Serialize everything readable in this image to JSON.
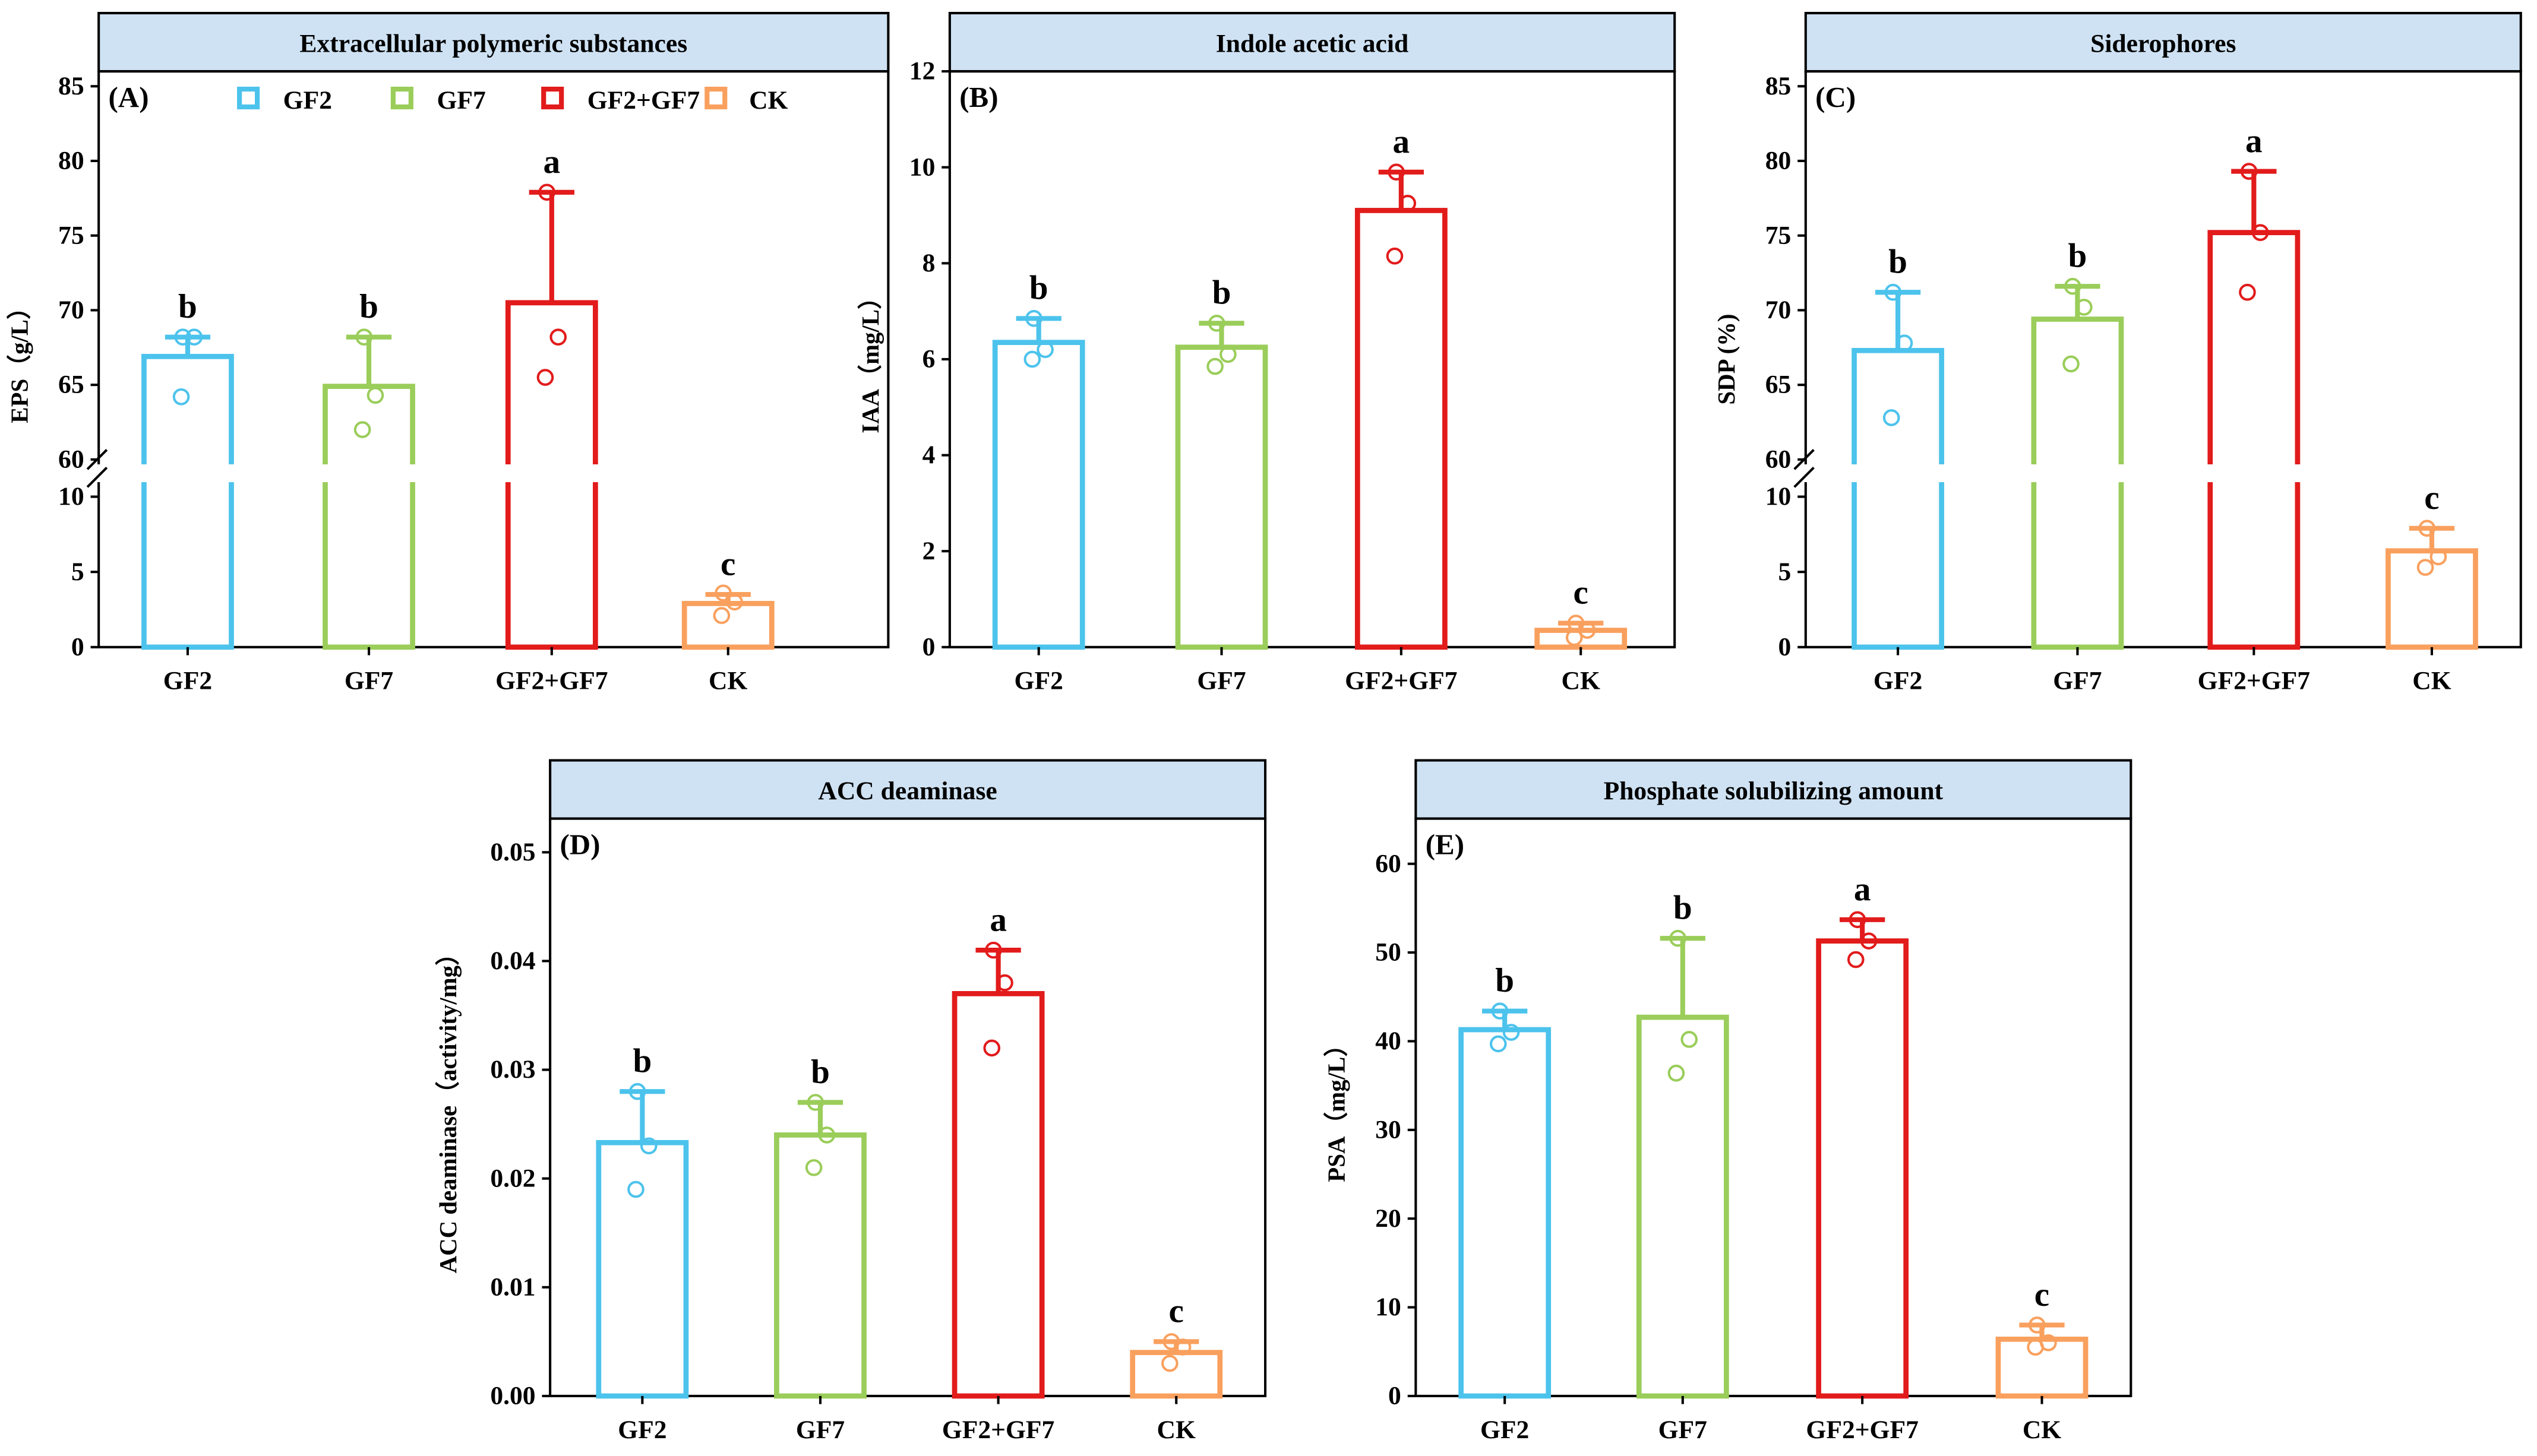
{
  "colors": {
    "GF2": "#4cc3ec",
    "GF7": "#9acd5a",
    "GF2+GF7": "#e21b1b",
    "CK": "#f9a05e",
    "title_bg": "#cfe2f3"
  },
  "legend": [
    "GF2",
    "GF7",
    "GF2+GF7",
    "CK"
  ],
  "chart_data": [
    {
      "type": "bar",
      "panel": "(A)",
      "title": "Extracellular polymeric substances",
      "ylabel": "EPS（g/L）",
      "categories": [
        "GF2",
        "GF7",
        "GF2+GF7",
        "CK"
      ],
      "axis_segments": [
        [
          0,
          10
        ],
        [
          60,
          86
        ]
      ],
      "ticks": [
        0,
        5,
        10,
        60,
        65,
        70,
        75,
        80,
        85
      ],
      "tick_labels": [
        "0",
        "5",
        "10",
        "60",
        "65",
        "70",
        "75",
        "80",
        "85"
      ],
      "means": [
        66.9,
        64.9,
        70.5,
        2.9
      ],
      "error_tops": [
        68.2,
        68.2,
        77.9,
        3.5
      ],
      "points": [
        [
          68.2,
          68.2,
          64.2
        ],
        [
          68.2,
          64.3,
          62.0
        ],
        [
          77.9,
          68.2,
          65.5
        ],
        [
          3.6,
          3.0,
          2.1
        ]
      ],
      "significance": [
        "b",
        "b",
        "a",
        "c"
      ],
      "legend": true
    },
    {
      "type": "bar",
      "panel": "(B)",
      "title": "Indole acetic acid",
      "ylabel": "IAA（mg/L）",
      "categories": [
        "GF2",
        "GF7",
        "GF2+GF7",
        "CK"
      ],
      "axis_segments": [
        [
          0,
          12
        ]
      ],
      "ticks": [
        0,
        2,
        4,
        6,
        8,
        10,
        12
      ],
      "tick_labels": [
        "0",
        "2",
        "4",
        "6",
        "8",
        "10",
        "12"
      ],
      "means": [
        6.35,
        6.25,
        9.1,
        0.35
      ],
      "error_tops": [
        6.85,
        6.75,
        9.9,
        0.5
      ],
      "points": [
        [
          6.85,
          6.2,
          6.0
        ],
        [
          6.75,
          6.1,
          5.85
        ],
        [
          9.9,
          9.25,
          8.15
        ],
        [
          0.5,
          0.35,
          0.2
        ]
      ],
      "significance": [
        "b",
        "b",
        "a",
        "c"
      ],
      "legend": false
    },
    {
      "type": "bar",
      "panel": "(C)",
      "title": "Siderophores",
      "ylabel": "SDP (%)",
      "categories": [
        "GF2",
        "GF7",
        "GF2+GF7",
        "CK"
      ],
      "axis_segments": [
        [
          0,
          10
        ],
        [
          60,
          86
        ]
      ],
      "ticks": [
        0,
        5,
        10,
        60,
        65,
        70,
        75,
        80,
        85
      ],
      "tick_labels": [
        "0",
        "5",
        "10",
        "60",
        "65",
        "70",
        "75",
        "80",
        "85"
      ],
      "means": [
        67.3,
        69.4,
        75.2,
        6.4
      ],
      "error_tops": [
        71.2,
        71.6,
        79.3,
        7.9
      ],
      "points": [
        [
          71.2,
          67.8,
          62.8
        ],
        [
          71.6,
          70.2,
          66.4
        ],
        [
          79.3,
          75.2,
          71.2
        ],
        [
          7.9,
          6.0,
          5.3
        ]
      ],
      "significance": [
        "b",
        "b",
        "a",
        "c"
      ],
      "legend": false
    },
    {
      "type": "bar",
      "panel": "(D)",
      "title": "ACC deaminase",
      "ylabel": "ACC deaminase（activity/mg）",
      "categories": [
        "GF2",
        "GF7",
        "GF2+GF7",
        "CK"
      ],
      "axis_segments": [
        [
          0,
          0.0531
        ]
      ],
      "ticks": [
        0,
        0.01,
        0.02,
        0.03,
        0.04,
        0.05
      ],
      "tick_labels": [
        "0.00",
        "0.01",
        "0.02",
        "0.03",
        "0.04",
        "0.05"
      ],
      "means": [
        0.0233,
        0.024,
        0.037,
        0.004
      ],
      "error_tops": [
        0.028,
        0.027,
        0.041,
        0.005
      ],
      "points": [
        [
          0.028,
          0.023,
          0.019
        ],
        [
          0.027,
          0.024,
          0.021
        ],
        [
          0.041,
          0.038,
          0.032
        ],
        [
          0.005,
          0.0045,
          0.003
        ]
      ],
      "significance": [
        "b",
        "b",
        "a",
        "c"
      ],
      "legend": false
    },
    {
      "type": "bar",
      "panel": "(E)",
      "title": "Phosphate solubilizing amount",
      "ylabel": "PSA（mg/L）",
      "categories": [
        "GF2",
        "GF7",
        "GF2+GF7",
        "CK"
      ],
      "axis_segments": [
        [
          0,
          65.1
        ]
      ],
      "ticks": [
        0,
        10,
        20,
        30,
        40,
        50,
        60
      ],
      "tick_labels": [
        "0",
        "10",
        "20",
        "30",
        "40",
        "50",
        "60"
      ],
      "means": [
        41.3,
        42.7,
        51.3,
        6.4
      ],
      "error_tops": [
        43.4,
        51.6,
        53.7,
        8.0
      ],
      "points": [
        [
          43.4,
          41.0,
          39.7
        ],
        [
          51.6,
          40.2,
          36.4
        ],
        [
          53.7,
          51.3,
          49.2
        ],
        [
          8.0,
          6.0,
          5.5
        ]
      ],
      "significance": [
        "b",
        "b",
        "a",
        "c"
      ],
      "legend": false
    }
  ]
}
